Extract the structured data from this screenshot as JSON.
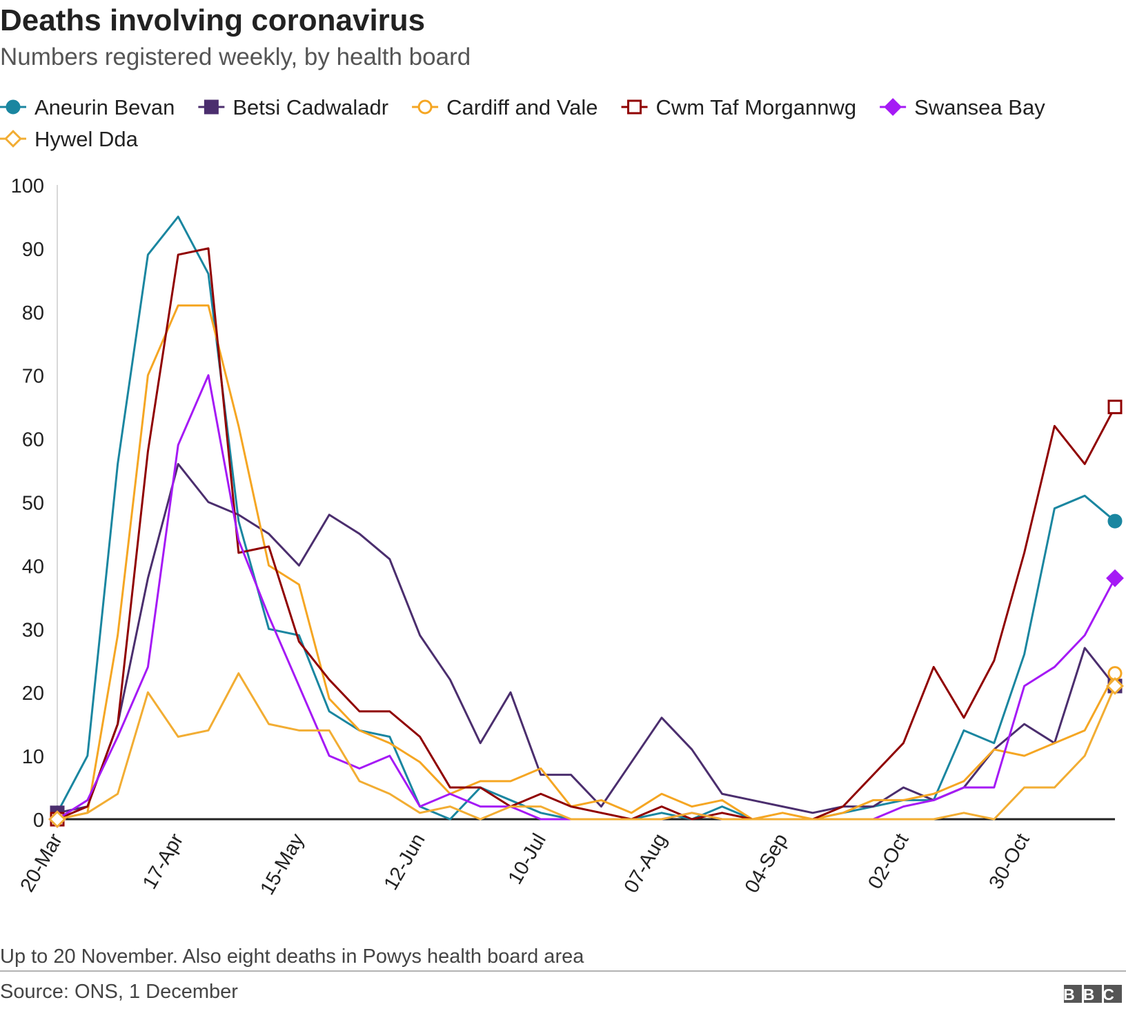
{
  "chart_data": {
    "type": "line",
    "title": "Deaths involving coronavirus",
    "subtitle": "Numbers registered weekly, by health board",
    "note": "Up to 20 November. Also eight deaths in Powys health board area",
    "source": "Source: ONS, 1 December",
    "logo": "BBC",
    "categories": [
      "20-Mar",
      null,
      null,
      null,
      "17-Apr",
      null,
      null,
      null,
      "15-May",
      null,
      null,
      null,
      "12-Jun",
      null,
      null,
      null,
      "10-Jul",
      null,
      null,
      null,
      "07-Aug",
      null,
      null,
      null,
      "04-Sep",
      null,
      null,
      null,
      "02-Oct",
      null,
      null,
      null,
      "30-Oct",
      null,
      null,
      null
    ],
    "ylim": [
      0,
      100
    ],
    "yticks": [
      0,
      10,
      20,
      30,
      40,
      50,
      60,
      70,
      80,
      90,
      100
    ],
    "series": [
      {
        "name": "Aneurin Bevan",
        "color": "#1a86a0",
        "marker": "circle",
        "values": [
          1,
          10,
          56,
          89,
          95,
          86,
          47,
          30,
          29,
          17,
          14,
          13,
          2,
          0,
          5,
          3,
          1,
          0,
          0,
          0,
          1,
          0,
          2,
          0,
          0,
          0,
          1,
          2,
          3,
          3,
          14,
          12,
          26,
          49,
          51,
          47
        ]
      },
      {
        "name": "Betsi Cadwaladr",
        "color": "#4b2e6e",
        "marker": "square",
        "values": [
          1,
          2,
          15,
          38,
          56,
          50,
          48,
          45,
          40,
          48,
          45,
          41,
          29,
          22,
          12,
          20,
          7,
          7,
          2,
          9,
          16,
          11,
          4,
          3,
          2,
          1,
          2,
          2,
          5,
          3,
          5,
          11,
          15,
          12,
          27,
          21
        ]
      },
      {
        "name": "Cardiff and Vale",
        "color": "#f5a623",
        "marker": "circle-open",
        "values": [
          0,
          1,
          29,
          70,
          81,
          81,
          62,
          40,
          37,
          19,
          14,
          12,
          9,
          4,
          6,
          6,
          8,
          2,
          3,
          1,
          4,
          2,
          3,
          0,
          1,
          0,
          1,
          3,
          3,
          4,
          6,
          11,
          10,
          12,
          14,
          23
        ]
      },
      {
        "name": "Cwm Taf Morgannwg",
        "color": "#900000",
        "marker": "square-open",
        "values": [
          0,
          2,
          15,
          58,
          89,
          90,
          42,
          43,
          28,
          22,
          17,
          17,
          13,
          5,
          5,
          2,
          4,
          2,
          1,
          0,
          2,
          0,
          1,
          0,
          0,
          0,
          2,
          7,
          12,
          24,
          16,
          25,
          42,
          62,
          56,
          65
        ]
      },
      {
        "name": "Swansea Bay",
        "color": "#a51af5",
        "marker": "diamond",
        "values": [
          0,
          3,
          13,
          24,
          59,
          70,
          44,
          32,
          21,
          10,
          8,
          10,
          2,
          4,
          2,
          2,
          0,
          0,
          0,
          0,
          0,
          1,
          0,
          0,
          0,
          0,
          0,
          0,
          2,
          3,
          5,
          5,
          21,
          24,
          29,
          38
        ]
      },
      {
        "name": "Hywel Dda",
        "color": "#f2ad33",
        "marker": "diamond-open",
        "values": [
          0,
          1,
          4,
          20,
          13,
          14,
          23,
          15,
          14,
          14,
          6,
          4,
          1,
          2,
          0,
          2,
          2,
          0,
          0,
          0,
          0,
          1,
          0,
          0,
          0,
          0,
          0,
          0,
          0,
          0,
          1,
          0,
          5,
          5,
          10,
          21
        ]
      }
    ]
  }
}
